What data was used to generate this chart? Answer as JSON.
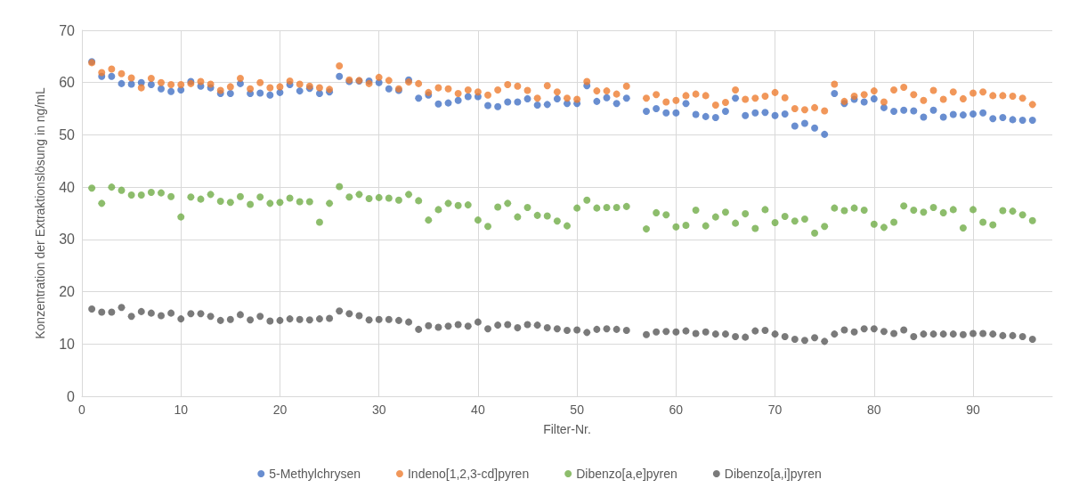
{
  "chart_data": {
    "type": "scatter",
    "xlabel": "Filter-Nr.",
    "ylabel": "Konzentration der Extraktionslösung in ng/mL",
    "x": [
      1,
      2,
      3,
      4,
      5,
      6,
      7,
      8,
      9,
      10,
      11,
      12,
      13,
      14,
      15,
      16,
      17,
      18,
      19,
      20,
      21,
      22,
      23,
      24,
      25,
      26,
      27,
      28,
      29,
      30,
      31,
      32,
      33,
      34,
      35,
      36,
      37,
      38,
      39,
      40,
      41,
      42,
      43,
      44,
      45,
      46,
      47,
      48,
      49,
      50,
      51,
      52,
      53,
      54,
      55,
      57,
      58,
      59,
      60,
      61,
      62,
      63,
      64,
      65,
      66,
      67,
      68,
      69,
      70,
      71,
      72,
      73,
      74,
      75,
      76,
      77,
      78,
      79,
      80,
      81,
      82,
      83,
      84,
      85,
      86,
      87,
      88,
      89,
      90,
      91,
      92,
      93,
      94,
      95,
      96
    ],
    "series": [
      {
        "name": "5-Methylchrysen",
        "color": "#4472c4",
        "values": [
          64,
          61.2,
          61.2,
          59.8,
          59.7,
          60,
          59.6,
          58.8,
          58.3,
          58.6,
          60.2,
          59.3,
          59,
          57.9,
          57.9,
          59.8,
          57.9,
          58,
          57.6,
          58.1,
          59.6,
          58.4,
          58.9,
          57.9,
          58.2,
          61.2,
          60.2,
          60.3,
          60.3,
          60,
          58.8,
          58.5,
          60.5,
          57,
          57.6,
          55.9,
          56.1,
          56.6,
          57.3,
          57.3,
          55.6,
          55.4,
          56.3,
          56.3,
          56.9,
          55.7,
          55.8,
          56.9,
          56,
          56,
          59.4,
          56.4,
          57.1,
          56,
          57,
          54.5,
          55,
          54.2,
          54.2,
          56,
          53.9,
          53.5,
          53.3,
          54.5,
          57,
          53.7,
          54.2,
          54.3,
          53.7,
          54,
          51.7,
          52.2,
          51.3,
          50.1,
          57.9,
          56,
          56.8,
          56.3,
          56.9,
          55.2,
          54.5,
          54.7,
          54.6,
          53.4,
          54.7,
          53.4,
          53.9,
          53.8,
          54,
          54.2,
          53.1,
          53.3,
          52.9,
          52.8,
          52.8
        ]
      },
      {
        "name": "Indeno[1,2,3-cd]pyren",
        "color": "#ed7d31",
        "values": [
          63.8,
          61.9,
          62.6,
          61.7,
          60.9,
          59,
          60.8,
          60,
          59.6,
          59.6,
          59.8,
          60.2,
          59.7,
          58.5,
          59.2,
          60.8,
          58.8,
          60,
          59,
          59.2,
          60.3,
          59.7,
          59.3,
          59,
          58.7,
          63.2,
          60.5,
          60.4,
          59.8,
          61,
          60.4,
          58.8,
          60.1,
          59.8,
          58.1,
          59,
          58.8,
          57.9,
          58.6,
          58.2,
          57.6,
          58.6,
          59.6,
          59.3,
          58.5,
          57,
          59.4,
          58.2,
          57,
          56.8,
          60.2,
          58.4,
          58.4,
          57.8,
          59.3,
          57,
          57.7,
          56.3,
          56.6,
          57.5,
          57.8,
          57.5,
          55.7,
          56.2,
          58.6,
          56.8,
          57,
          57.4,
          58.1,
          57.1,
          55,
          54.8,
          55.2,
          54.6,
          59.7,
          56.4,
          57.4,
          57.7,
          58.4,
          56.3,
          58.6,
          59.1,
          57.7,
          56.6,
          58.5,
          56.8,
          58.2,
          56.9,
          58,
          58.2,
          57.5,
          57.5,
          57.4,
          57,
          55.8
        ]
      },
      {
        "name": "Dibenzo[a,e]pyren",
        "color": "#70ad47",
        "values": [
          39.8,
          36.9,
          40,
          39.4,
          38.5,
          38.5,
          39,
          38.9,
          38.2,
          34.3,
          38.1,
          37.7,
          38.6,
          37.3,
          37.1,
          38.2,
          36.7,
          38.1,
          36.9,
          37.1,
          37.9,
          37.2,
          37.2,
          33.3,
          36.9,
          40.1,
          38.1,
          38.6,
          37.8,
          38,
          37.9,
          37.5,
          38.6,
          37.4,
          33.7,
          35.7,
          36.9,
          36.5,
          36.6,
          33.7,
          32.5,
          36.2,
          36.9,
          34.3,
          36.1,
          34.6,
          34.5,
          33.5,
          32.6,
          36,
          37.5,
          36,
          36.1,
          36.1,
          36.3,
          32,
          35.1,
          34.7,
          32.4,
          32.7,
          35.6,
          32.6,
          34.3,
          35.2,
          33.1,
          34.9,
          32.1,
          35.7,
          33.2,
          34.4,
          33.5,
          33.9,
          31.2,
          32.5,
          36,
          35.5,
          36,
          35.6,
          32.9,
          32.3,
          33.3,
          36.4,
          35.6,
          35.2,
          36.1,
          35.1,
          35.7,
          32.2,
          35.7,
          33.3,
          32.8,
          35.5,
          35.4,
          34.7,
          33.6
        ]
      },
      {
        "name": "Dibenzo[a,i]pyren",
        "color": "#595959",
        "values": [
          16.7,
          16.1,
          16.1,
          17,
          15.3,
          16.2,
          15.9,
          15.4,
          15.9,
          14.8,
          15.8,
          15.8,
          15.3,
          14.5,
          14.7,
          15.6,
          14.6,
          15.3,
          14.4,
          14.5,
          14.8,
          14.7,
          14.6,
          14.8,
          14.9,
          16.3,
          15.8,
          15.4,
          14.6,
          14.7,
          14.7,
          14.5,
          14.2,
          12.8,
          13.5,
          13.2,
          13.4,
          13.7,
          13.4,
          14.2,
          12.9,
          13.6,
          13.7,
          13.1,
          13.7,
          13.6,
          13.1,
          12.9,
          12.6,
          12.7,
          12.2,
          12.8,
          12.9,
          12.8,
          12.6,
          11.8,
          12.3,
          12.4,
          12.3,
          12.5,
          12,
          12.3,
          11.9,
          11.9,
          11.4,
          11.3,
          12.5,
          12.6,
          11.9,
          11.4,
          10.9,
          10.7,
          11.2,
          10.5,
          11.9,
          12.7,
          12.3,
          12.9,
          12.9,
          12.4,
          12,
          12.7,
          11.4,
          11.9,
          11.9,
          11.9,
          11.9,
          11.8,
          12,
          12,
          11.9,
          11.6,
          11.6,
          11.4,
          10.9
        ]
      }
    ],
    "xlim": [
      0,
      98
    ],
    "xticks": [
      0,
      10,
      20,
      30,
      40,
      50,
      60,
      70,
      80,
      90
    ],
    "ylim": [
      0,
      70
    ],
    "yticks": [
      0,
      10,
      20,
      30,
      40,
      50,
      60,
      70
    ],
    "grid": true,
    "legend": "bottom",
    "marker": "circle"
  }
}
